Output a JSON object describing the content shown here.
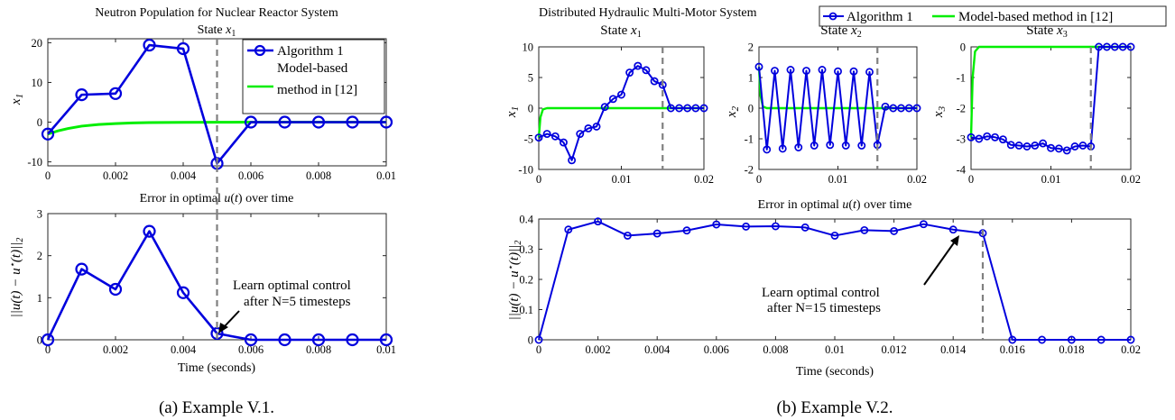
{
  "colors": {
    "algorithm": "#0000dd",
    "model": "#00ee00",
    "guide": "#808080",
    "axis": "#262626"
  },
  "captions": {
    "a": "(a) Example V.1.",
    "b": "(b) Example V.2."
  },
  "legend": {
    "algorithm": "Algorithm 1",
    "model_line1": "Model-based",
    "model_line2": "method in [12]",
    "model_full": "Model-based method in [12]"
  },
  "annotations": {
    "a_line1": "Learn optimal control",
    "a_line2": "after N=5 timesteps",
    "b_line1": "Learn optimal control",
    "b_line2": "after N=15 timesteps"
  },
  "chart_data": [
    {
      "id": "a_state",
      "type": "line",
      "title": "Neutron Population for Nuclear Reactor System",
      "subtitle": "State x1",
      "xlabel": "",
      "ylabel": "x1",
      "xlim": [
        0,
        0.01
      ],
      "ylim": [
        -11,
        21
      ],
      "xticks": [
        0,
        0.002,
        0.004,
        0.006,
        0.008,
        0.01
      ],
      "yticks": [
        -10,
        0,
        10,
        20
      ],
      "vline": 0.005,
      "series": [
        {
          "name": "Algorithm 1",
          "role": "algorithm",
          "markers": true,
          "x": [
            0,
            0.001,
            0.002,
            0.003,
            0.004,
            0.005,
            0.006,
            0.007,
            0.008,
            0.009,
            0.01
          ],
          "y": [
            -3,
            6.9,
            7.2,
            19.4,
            18.5,
            -10.4,
            0,
            0,
            0,
            0,
            0
          ]
        },
        {
          "name": "Model-based method in [12]",
          "role": "model",
          "markers": false,
          "x": [
            0,
            0.0003,
            0.0006,
            0.001,
            0.0015,
            0.002,
            0.0025,
            0.003,
            0.004,
            0.005,
            0.006,
            0.007,
            0.008,
            0.009,
            0.01
          ],
          "y": [
            -3,
            -2.2,
            -1.6,
            -1.0,
            -0.6,
            -0.35,
            -0.2,
            -0.12,
            -0.05,
            -0.02,
            0,
            0,
            0,
            0,
            0
          ]
        }
      ]
    },
    {
      "id": "a_error",
      "type": "line",
      "title": "Error in optimal u(t) over time",
      "xlabel": "Time (seconds)",
      "ylabel": "||u(t) − u*(t)||2",
      "xlim": [
        0,
        0.01
      ],
      "ylim": [
        0,
        3
      ],
      "xticks": [
        0,
        0.002,
        0.004,
        0.006,
        0.008,
        0.01
      ],
      "yticks": [
        0,
        1,
        2,
        3
      ],
      "vline": 0.005,
      "series": [
        {
          "name": "Algorithm 1",
          "role": "algorithm",
          "markers": true,
          "x": [
            0,
            0.001,
            0.002,
            0.003,
            0.004,
            0.005,
            0.006,
            0.007,
            0.008,
            0.009,
            0.01
          ],
          "y": [
            0,
            1.68,
            1.2,
            2.58,
            1.12,
            0.15,
            0,
            0,
            0,
            0,
            0
          ]
        }
      ]
    },
    {
      "id": "b_x1",
      "type": "line",
      "title": "State x1",
      "xlabel": "",
      "ylabel": "x1",
      "xlim": [
        0,
        0.02
      ],
      "ylim": [
        -10,
        10
      ],
      "xticks": [
        0,
        0.01,
        0.02
      ],
      "yticks": [
        -10,
        -5,
        0,
        5,
        10
      ],
      "vline": 0.015,
      "series": [
        {
          "name": "Algorithm 1",
          "role": "algorithm",
          "markers": true,
          "x": [
            0,
            0.001,
            0.002,
            0.003,
            0.004,
            0.005,
            0.006,
            0.007,
            0.008,
            0.009,
            0.01,
            0.011,
            0.012,
            0.013,
            0.014,
            0.015,
            0.016,
            0.017,
            0.018,
            0.019,
            0.02
          ],
          "y": [
            -4.8,
            -4.2,
            -4.6,
            -5.6,
            -8.5,
            -4.2,
            -3.3,
            -3.0,
            0.2,
            1.5,
            2.2,
            5.8,
            6.9,
            6.2,
            4.4,
            3.8,
            0,
            0,
            0,
            0,
            0
          ]
        },
        {
          "name": "Model-based method in [12]",
          "role": "model",
          "markers": false,
          "x": [
            0,
            0.0002,
            0.0005,
            0.001,
            0.02
          ],
          "y": [
            -4.8,
            -1.5,
            -0.2,
            0,
            0
          ]
        }
      ]
    },
    {
      "id": "b_x2",
      "type": "line",
      "title": "State x2",
      "xlabel": "",
      "ylabel": "x2",
      "xlim": [
        0,
        0.02
      ],
      "ylim": [
        -2,
        2
      ],
      "xticks": [
        0,
        0.01,
        0.02
      ],
      "yticks": [
        -2,
        -1,
        0,
        1,
        2
      ],
      "vline": 0.015,
      "series": [
        {
          "name": "Algorithm 1",
          "role": "algorithm",
          "markers": true,
          "x": [
            0,
            0.001,
            0.002,
            0.003,
            0.004,
            0.005,
            0.006,
            0.007,
            0.008,
            0.009,
            0.01,
            0.011,
            0.012,
            0.013,
            0.014,
            0.015,
            0.016,
            0.017,
            0.018,
            0.019,
            0.02
          ],
          "y": [
            1.35,
            -1.35,
            1.22,
            -1.32,
            1.25,
            -1.28,
            1.22,
            -1.22,
            1.25,
            -1.2,
            1.2,
            -1.22,
            1.2,
            -1.22,
            1.18,
            -1.2,
            0.05,
            0,
            0,
            0,
            0
          ]
        },
        {
          "name": "Model-based method in [12]",
          "role": "model",
          "markers": false,
          "x": [
            0,
            0.0002,
            0.0005,
            0.001,
            0.02
          ],
          "y": [
            1.35,
            0.4,
            0.05,
            0,
            0
          ]
        }
      ]
    },
    {
      "id": "b_x3",
      "type": "line",
      "title": "State x3",
      "xlabel": "",
      "ylabel": "x3",
      "xlim": [
        0,
        0.02
      ],
      "ylim": [
        -4,
        0
      ],
      "xticks": [
        0,
        0.01,
        0.02
      ],
      "yticks": [
        -4,
        -3,
        -2,
        -1,
        0
      ],
      "vline": 0.015,
      "series": [
        {
          "name": "Algorithm 1",
          "role": "algorithm",
          "markers": true,
          "x": [
            0,
            0.001,
            0.002,
            0.003,
            0.004,
            0.005,
            0.006,
            0.007,
            0.008,
            0.009,
            0.01,
            0.011,
            0.012,
            0.013,
            0.014,
            0.015,
            0.016,
            0.017,
            0.018,
            0.019,
            0.02
          ],
          "y": [
            -2.95,
            -3.0,
            -2.92,
            -2.95,
            -3.02,
            -3.2,
            -3.22,
            -3.25,
            -3.22,
            -3.15,
            -3.3,
            -3.32,
            -3.38,
            -3.25,
            -3.22,
            -3.25,
            0,
            0,
            0,
            0,
            0
          ]
        },
        {
          "name": "Model-based method in [12]",
          "role": "model",
          "markers": false,
          "x": [
            0,
            0.0002,
            0.0005,
            0.001,
            0.02
          ],
          "y": [
            -2.95,
            -1.0,
            -0.15,
            0,
            0
          ]
        }
      ]
    },
    {
      "id": "b_error",
      "type": "line",
      "title": "Error in optimal u(t) over time",
      "xlabel": "Time (seconds)",
      "ylabel": "||u(t) − u*(t)||2",
      "xlim": [
        0,
        0.02
      ],
      "ylim": [
        0,
        0.4
      ],
      "xticks": [
        0,
        0.002,
        0.004,
        0.006,
        0.008,
        0.01,
        0.012,
        0.014,
        0.016,
        0.018,
        0.02
      ],
      "yticks": [
        0,
        0.1,
        0.2,
        0.3,
        0.4
      ],
      "vline": 0.015,
      "series": [
        {
          "name": "Algorithm 1",
          "role": "algorithm",
          "markers": true,
          "x": [
            0,
            0.001,
            0.002,
            0.003,
            0.004,
            0.005,
            0.006,
            0.007,
            0.008,
            0.009,
            0.01,
            0.011,
            0.012,
            0.013,
            0.014,
            0.015,
            0.016,
            0.017,
            0.018,
            0.019,
            0.02
          ],
          "y": [
            0,
            0.365,
            0.392,
            0.345,
            0.352,
            0.362,
            0.382,
            0.375,
            0.376,
            0.372,
            0.345,
            0.363,
            0.36,
            0.383,
            0.365,
            0.353,
            0,
            0,
            0,
            0,
            0
          ]
        }
      ]
    }
  ]
}
